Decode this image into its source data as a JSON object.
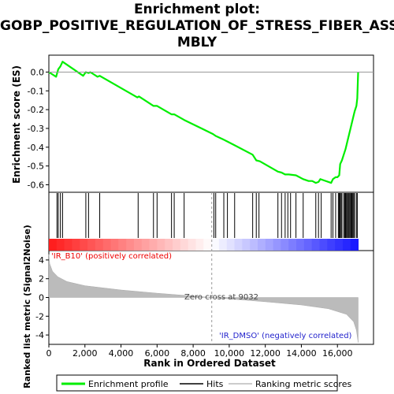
{
  "title_lines": [
    "Enrichment plot:",
    "GOBP_POSITIVE_REGULATION_OF_STRESS_FIBER_ASSE",
    "MBLY"
  ],
  "chart_data": {
    "type": "line",
    "es_panel": {
      "ylabel": "Enrichment score (ES)",
      "ylim": [
        -0.64,
        0.09
      ],
      "yticks": [
        0.0,
        -0.1,
        -0.2,
        -0.3,
        -0.4,
        -0.5,
        -0.6
      ],
      "ytick_labels": [
        "0.0",
        "-0.1",
        "-0.2",
        "-0.3",
        "-0.4",
        "-0.5",
        "-0.6"
      ],
      "series_color": "#00ee00",
      "points": [
        [
          0,
          0.0
        ],
        [
          400,
          -0.025
        ],
        [
          520,
          0.015
        ],
        [
          640,
          0.03
        ],
        [
          760,
          0.055
        ],
        [
          1900,
          -0.02
        ],
        [
          2050,
          0.0
        ],
        [
          2200,
          -0.005
        ],
        [
          2300,
          0.0
        ],
        [
          2700,
          -0.025
        ],
        [
          2820,
          -0.02
        ],
        [
          4900,
          -0.135
        ],
        [
          5000,
          -0.13
        ],
        [
          5800,
          -0.18
        ],
        [
          6000,
          -0.18
        ],
        [
          6800,
          -0.225
        ],
        [
          6950,
          -0.225
        ],
        [
          7500,
          -0.255
        ],
        [
          9100,
          -0.33
        ],
        [
          9250,
          -0.34
        ],
        [
          9700,
          -0.36
        ],
        [
          9900,
          -0.37
        ],
        [
          10300,
          -0.39
        ],
        [
          11300,
          -0.44
        ],
        [
          11500,
          -0.47
        ],
        [
          11700,
          -0.475
        ],
        [
          12700,
          -0.53
        ],
        [
          12900,
          -0.535
        ],
        [
          13100,
          -0.545
        ],
        [
          13300,
          -0.545
        ],
        [
          13700,
          -0.55
        ],
        [
          14100,
          -0.57
        ],
        [
          14400,
          -0.58
        ],
        [
          14600,
          -0.58
        ],
        [
          14800,
          -0.59
        ],
        [
          14950,
          -0.585
        ],
        [
          15050,
          -0.57
        ],
        [
          15200,
          -0.575
        ],
        [
          15650,
          -0.59
        ],
        [
          15750,
          -0.57
        ],
        [
          15900,
          -0.56
        ],
        [
          16000,
          -0.56
        ],
        [
          16100,
          -0.55
        ],
        [
          16150,
          -0.49
        ],
        [
          16250,
          -0.47
        ],
        [
          16350,
          -0.44
        ],
        [
          16450,
          -0.41
        ],
        [
          16550,
          -0.37
        ],
        [
          16650,
          -0.33
        ],
        [
          16750,
          -0.29
        ],
        [
          16850,
          -0.25
        ],
        [
          16950,
          -0.21
        ],
        [
          17050,
          -0.18
        ],
        [
          17100,
          -0.14
        ],
        [
          17150,
          0.0
        ]
      ]
    },
    "hits": [
      450,
      520,
      640,
      760,
      2050,
      2200,
      2820,
      4950,
      5800,
      6000,
      6800,
      6950,
      7500,
      9150,
      9250,
      9700,
      9900,
      10300,
      11300,
      11500,
      11650,
      12700,
      12900,
      13100,
      13250,
      13400,
      13700,
      14100,
      14800,
      14950,
      15100,
      15650,
      15750,
      15900,
      16050,
      16100,
      16150,
      16200,
      16250,
      16350,
      16400,
      16450,
      16500,
      16550,
      16600,
      16650,
      16700,
      16750,
      16800,
      16850,
      16900,
      16950,
      17050,
      17100
    ],
    "rank_panel": {
      "ylabel": "Ranked list metric (Signal2Noise)",
      "ylim": [
        -5,
        5
      ],
      "yticks": [
        4,
        2,
        0,
        -2,
        -4
      ],
      "ytick_labels": [
        "4",
        "2",
        "0",
        "-2",
        "-4"
      ],
      "profile": [
        [
          0,
          4.6
        ],
        [
          50,
          3.6
        ],
        [
          200,
          2.8
        ],
        [
          500,
          2.2
        ],
        [
          1000,
          1.7
        ],
        [
          2000,
          1.25
        ],
        [
          4000,
          0.8
        ],
        [
          6000,
          0.45
        ],
        [
          8000,
          0.15
        ],
        [
          9032,
          0.0
        ],
        [
          10000,
          -0.15
        ],
        [
          12000,
          -0.45
        ],
        [
          14000,
          -0.8
        ],
        [
          15500,
          -1.2
        ],
        [
          16500,
          -1.8
        ],
        [
          16900,
          -2.6
        ],
        [
          17050,
          -3.5
        ],
        [
          17150,
          -4.8
        ]
      ],
      "zero_cross_label": "Zero cross at 9032",
      "zero_cross": 9032,
      "pos_label": "'IR_B10' (positively correlated)",
      "neg_label": "'IR_DMSO' (negatively correlated)"
    },
    "x_axis": {
      "xlabel": "Rank in Ordered Dataset",
      "xlim": [
        0,
        18000
      ],
      "xticks": [
        0,
        2000,
        4000,
        6000,
        8000,
        10000,
        12000,
        14000,
        16000
      ],
      "xtick_labels": [
        "0",
        "2,000",
        "4,000",
        "6,000",
        "8,000",
        "10,000",
        "12,000",
        "14,000",
        "16,000"
      ],
      "n_genes": 17150
    },
    "legend": {
      "placement": "bottom",
      "entries": [
        {
          "label": "Enrichment profile",
          "color": "#00ee00"
        },
        {
          "label": "Hits",
          "color": "#000000"
        },
        {
          "label": "Ranking metric scores",
          "color": "#bbbbbb"
        }
      ]
    }
  }
}
